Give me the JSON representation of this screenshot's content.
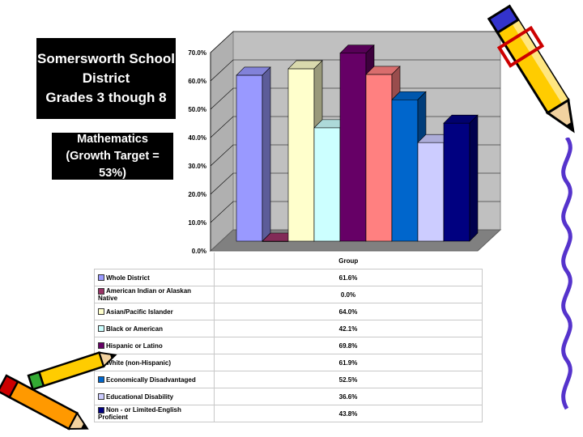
{
  "title_lines": [
    "Somersworth School",
    "District",
    "Grades 3 though 8"
  ],
  "subtitle_lines": [
    "Mathematics",
    "(Growth Target = 53%)"
  ],
  "chart_data": {
    "type": "bar",
    "title": "",
    "xlabel": "Group",
    "ylabel": "",
    "ylim": [
      0,
      70
    ],
    "y_ticks": [
      "0.0%",
      "10.0%",
      "20.0%",
      "30.0%",
      "40.0%",
      "50.0%",
      "60.0%",
      "70.0%"
    ],
    "grid": true,
    "three_d": true,
    "legend_position": "bottom-table",
    "series": [
      {
        "name": "Whole District",
        "value": 61.6,
        "label": "61.6%",
        "color": "#9999ff"
      },
      {
        "name": "American Indian or Alaskan Native",
        "value": 0.0,
        "label": "0.0%",
        "color": "#993366"
      },
      {
        "name": "Asian/Pacific Islander",
        "value": 64.0,
        "label": "64.0%",
        "color": "#ffffcc"
      },
      {
        "name": "Black or American",
        "value": 42.1,
        "label": "42.1%",
        "color": "#ccffff"
      },
      {
        "name": "Hispanic or Latino",
        "value": 69.8,
        "label": "69.8%",
        "color": "#660066"
      },
      {
        "name": "White (non-Hispanic)",
        "value": 61.9,
        "label": "61.9%",
        "color": "#ff8080"
      },
      {
        "name": "Economically Disadvantaged",
        "value": 52.5,
        "label": "52.5%",
        "color": "#0066cc"
      },
      {
        "name": "Educational Disability",
        "value": 36.6,
        "label": "36.6%",
        "color": "#ccccff"
      },
      {
        "name": "Non - or Limited-English Proficient",
        "value": 43.8,
        "label": "43.8%",
        "color": "#000080"
      }
    ]
  },
  "decorations": {
    "pencil_top_right": "pencil-icon",
    "pencils_bottom_left": "pencils-icon",
    "squiggle_right": "squiggle-border"
  }
}
